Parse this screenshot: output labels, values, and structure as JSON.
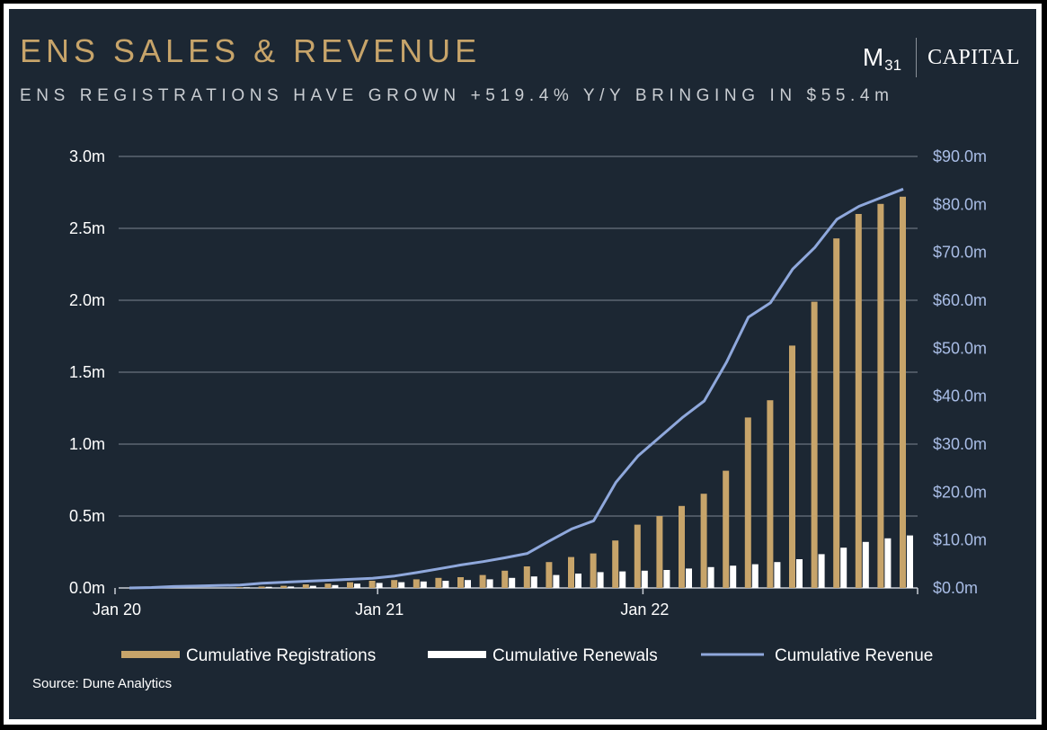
{
  "header": {
    "title": "ENS SALES & REVENUE",
    "subtitle": "ENS REGISTRATIONS HAVE GROWN +519.4% Y/Y BRINGING IN $55.4m",
    "logo": {
      "m": "M",
      "sub": "31",
      "capital": "CAPITAL"
    }
  },
  "footer": {
    "source": "Source: Dune Analytics"
  },
  "colors": {
    "background": "#1c2733",
    "title": "#c7a46a",
    "registrations": "#c7a46a",
    "renewals": "#ffffff",
    "revenue": "#8fa8dc",
    "grid": "#7b8592",
    "right_axis": "#a9bde6"
  },
  "chart_data": {
    "type": "bar",
    "title": "ENS SALES & REVENUE",
    "x_tick_labels": [
      "Jan 20",
      "Jan 21",
      "Jan 22"
    ],
    "x_tick_index": [
      0,
      12,
      24
    ],
    "y_left": {
      "range": [
        0,
        3000000
      ],
      "ticks": [
        "0.0m",
        "0.5m",
        "1.0m",
        "1.5m",
        "2.0m",
        "2.5m",
        "3.0m"
      ]
    },
    "y_right": {
      "range": [
        0,
        90
      ],
      "ticks": [
        "$0.0m",
        "$10.0m",
        "$20.0m",
        "$30.0m",
        "$40.0m",
        "$50.0m",
        "$60.0m",
        "$70.0m",
        "$80.0m",
        "$90.0m"
      ]
    },
    "grid": true,
    "legend": "bottom",
    "series": [
      {
        "name": "Cumulative Registrations",
        "type": "bar",
        "axis": "left",
        "values": [
          0,
          0,
          0,
          0,
          0,
          5000,
          10000,
          15000,
          25000,
          30000,
          40000,
          50000,
          55000,
          60000,
          70000,
          75000,
          90000,
          120000,
          150000,
          180000,
          215000,
          240000,
          330000,
          440000,
          500000,
          570000,
          655000,
          815000,
          1185000,
          1305000,
          1685000,
          1990000,
          2430000,
          2600000,
          2670000,
          2720000
        ]
      },
      {
        "name": "Cumulative Renewals",
        "type": "bar",
        "axis": "left",
        "values": [
          0,
          0,
          0,
          0,
          0,
          4000,
          8000,
          10000,
          15000,
          20000,
          30000,
          35000,
          40000,
          45000,
          50000,
          55000,
          60000,
          70000,
          80000,
          90000,
          100000,
          110000,
          115000,
          120000,
          125000,
          135000,
          145000,
          155000,
          165000,
          180000,
          200000,
          235000,
          280000,
          320000,
          345000,
          365000
        ]
      },
      {
        "name": "Cumulative Revenue",
        "type": "line",
        "axis": "right",
        "values": [
          0,
          0.1,
          0.3,
          0.4,
          0.5,
          0.6,
          1.0,
          1.2,
          1.4,
          1.6,
          1.8,
          2.0,
          2.5,
          3.2,
          4.0,
          4.8,
          5.5,
          6.3,
          7.2,
          9.8,
          12.3,
          14.0,
          22.0,
          27.5,
          31.5,
          35.5,
          39.0,
          47.0,
          56.5,
          59.5,
          66.5,
          71.0,
          76.9,
          79.6,
          81.4,
          83.2
        ]
      }
    ]
  }
}
